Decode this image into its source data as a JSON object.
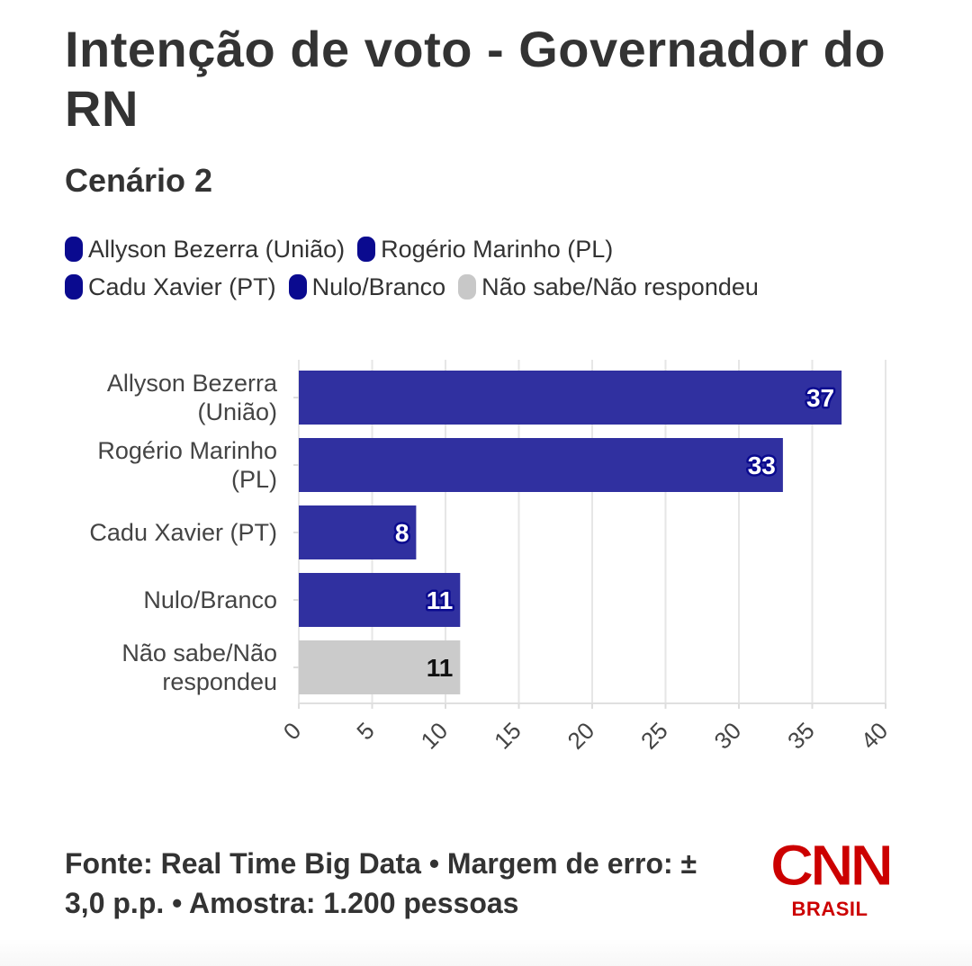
{
  "header": {
    "title": "Intenção de voto - Governador do RN",
    "subtitle": "Cenário 2"
  },
  "legend": {
    "items": [
      {
        "label": "Allyson Bezerra (União)",
        "color": "#0a0a8f"
      },
      {
        "label": "Rogério Marinho (PL)",
        "color": "#0a0a8f"
      },
      {
        "label": "Cadu Xavier (PT)",
        "color": "#0a0a8f"
      },
      {
        "label": "Nulo/Branco",
        "color": "#0a0a8f"
      },
      {
        "label": "Não sabe/Não respondeu",
        "color": "#c8c8c8"
      }
    ]
  },
  "chart_data": {
    "type": "bar",
    "orientation": "horizontal",
    "title": "Intenção de voto - Governador do RN",
    "subtitle": "Cenário 2",
    "categories": [
      [
        "Allyson Bezerra",
        "(União)"
      ],
      [
        "Rogério Marinho",
        "(PL)"
      ],
      [
        "Cadu Xavier (PT)"
      ],
      [
        "Nulo/Branco"
      ],
      [
        "Não sabe/Não",
        "respondeu"
      ]
    ],
    "values": [
      37,
      33,
      8,
      11,
      11
    ],
    "colors": [
      "#3030a0",
      "#3030a0",
      "#3030a0",
      "#3030a0",
      "#cbcbcb"
    ],
    "label_colors": [
      "#ffffff",
      "#ffffff",
      "#ffffff",
      "#ffffff",
      "#111111"
    ],
    "label_outline": [
      "#0a0a8f",
      "#0a0a8f",
      "#0a0a8f",
      "#0a0a8f",
      "#cbcbcb"
    ],
    "xlim": [
      0,
      40
    ],
    "xticks": [
      "0",
      "5",
      "10",
      "15",
      "20",
      "25",
      "30",
      "35",
      "40"
    ],
    "xlabel": "",
    "ylabel": "",
    "grid": true,
    "legend_position": "top"
  },
  "footer": {
    "source": "Fonte: Real Time Big Data • Margem de erro: ± 3,0 p.p. • Amostra: 1.200 pessoas"
  },
  "logo": {
    "mark": "CNN",
    "sub": "BRASIL",
    "color": "#cc0000"
  }
}
